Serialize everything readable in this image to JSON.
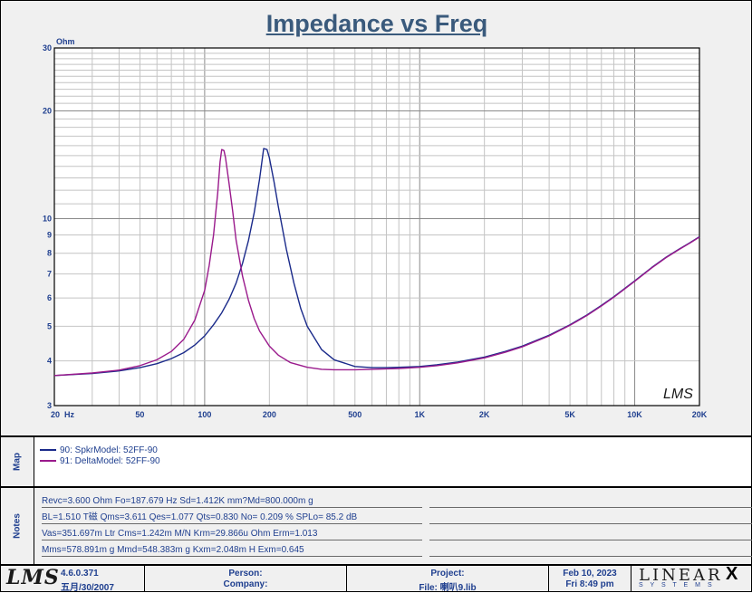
{
  "chart_data": {
    "type": "line",
    "title": "Impedance vs Freq",
    "ylabel": "Ohm",
    "xlabel": "Hz",
    "x_scale": "log",
    "y_scale": "log",
    "xlim": [
      20,
      20000
    ],
    "ylim": [
      3,
      30
    ],
    "x_ticks": [
      {
        "v": 20,
        "label": "20"
      },
      {
        "v": 50,
        "label": "50"
      },
      {
        "v": 100,
        "label": "100"
      },
      {
        "v": 200,
        "label": "200"
      },
      {
        "v": 500,
        "label": "500"
      },
      {
        "v": 1000,
        "label": "1K"
      },
      {
        "v": 2000,
        "label": "2K"
      },
      {
        "v": 5000,
        "label": "5K"
      },
      {
        "v": 10000,
        "label": "10K"
      },
      {
        "v": 20000,
        "label": "20K"
      }
    ],
    "y_ticks": [
      {
        "v": 3,
        "label": "3"
      },
      {
        "v": 4,
        "label": "4"
      },
      {
        "v": 5,
        "label": "5"
      },
      {
        "v": 6,
        "label": "6"
      },
      {
        "v": 7,
        "label": "7"
      },
      {
        "v": 8,
        "label": "8"
      },
      {
        "v": 9,
        "label": "9"
      },
      {
        "v": 10,
        "label": "10"
      },
      {
        "v": 20,
        "label": "20"
      },
      {
        "v": 30,
        "label": "30"
      }
    ],
    "grid": true,
    "watermark": "LMS",
    "series": [
      {
        "name": "90: SpkrModel: 52FF-90",
        "color": "#1a2a8a",
        "x": [
          20,
          30,
          40,
          50,
          60,
          70,
          80,
          90,
          100,
          110,
          120,
          130,
          140,
          150,
          160,
          170,
          180,
          188,
          195,
          200,
          210,
          220,
          240,
          260,
          280,
          300,
          350,
          400,
          500,
          600,
          700,
          800,
          1000,
          1200,
          1500,
          2000,
          2500,
          3000,
          4000,
          5000,
          6000,
          7000,
          8000,
          10000,
          12000,
          14000,
          16000,
          18000,
          20000
        ],
        "y": [
          3.64,
          3.69,
          3.75,
          3.83,
          3.93,
          4.06,
          4.22,
          4.43,
          4.7,
          5.05,
          5.45,
          5.95,
          6.6,
          7.5,
          8.7,
          10.4,
          12.9,
          15.7,
          15.6,
          14.8,
          12.7,
          10.8,
          8.2,
          6.6,
          5.6,
          5.0,
          4.3,
          4.03,
          3.86,
          3.83,
          3.83,
          3.84,
          3.86,
          3.9,
          3.97,
          4.1,
          4.25,
          4.4,
          4.72,
          5.05,
          5.38,
          5.72,
          6.05,
          6.7,
          7.3,
          7.8,
          8.2,
          8.55,
          8.9
        ]
      },
      {
        "name": "91: DeltaModel: 52FF-90",
        "color": "#9a1a8c",
        "x": [
          20,
          30,
          40,
          50,
          60,
          70,
          80,
          90,
          100,
          105,
          110,
          115,
          118,
          120,
          123,
          125,
          130,
          135,
          140,
          150,
          160,
          170,
          180,
          200,
          220,
          250,
          300,
          350,
          400,
          500,
          600,
          700,
          800,
          1000,
          1200,
          1500,
          2000,
          2500,
          3000,
          4000,
          5000,
          6000,
          7000,
          8000,
          10000,
          12000,
          14000,
          16000,
          18000,
          20000
        ],
        "y": [
          3.64,
          3.7,
          3.77,
          3.88,
          4.03,
          4.25,
          4.6,
          5.2,
          6.3,
          7.4,
          9.0,
          11.8,
          14.4,
          15.6,
          15.5,
          14.8,
          12.5,
          10.5,
          8.7,
          6.9,
          5.9,
          5.25,
          4.85,
          4.4,
          4.15,
          3.96,
          3.84,
          3.79,
          3.78,
          3.78,
          3.79,
          3.8,
          3.81,
          3.84,
          3.88,
          3.95,
          4.08,
          4.23,
          4.38,
          4.7,
          5.03,
          5.36,
          5.7,
          6.03,
          6.68,
          7.28,
          7.78,
          8.18,
          8.53,
          8.88
        ]
      }
    ]
  },
  "map": {
    "label": "Map",
    "items": [
      {
        "text": "90: SpkrModel: 52FF-90",
        "color": "#1a2a8a"
      },
      {
        "text": "91: DeltaModel: 52FF-90",
        "color": "#9a1a8c"
      }
    ]
  },
  "notes": {
    "label": "Notes",
    "lines": [
      "Revc=3.600 Ohm  Fo=187.679 Hz  Sd=1.412K mm?Md=800.000m g",
      "BL=1.510 T磁  Qms=3.611  Qes=1.077  Qts=0.830  No= 0.209 %  SPLo= 85.2 dB",
      "Vas=351.697m Ltr  Cms=1.242m M/N  Krm=29.866u Ohm  Erm=1.013",
      "Mms=578.891m g  Mmd=548.383m g  Kxm=2.048m H  Exm=0.645"
    ]
  },
  "footer": {
    "logo": "LMS",
    "version": "4.6.0.371",
    "date_cn": "五月/30/2007",
    "person": "Person:",
    "company": "Company:",
    "project": "Project:",
    "file": "File: 喇叭9.lib",
    "date": "Feb 10, 2023",
    "time": "Fri  8:49 pm",
    "brand": "LINEAR",
    "brand_x": "X",
    "brand_sub": "S Y S T E M S"
  }
}
